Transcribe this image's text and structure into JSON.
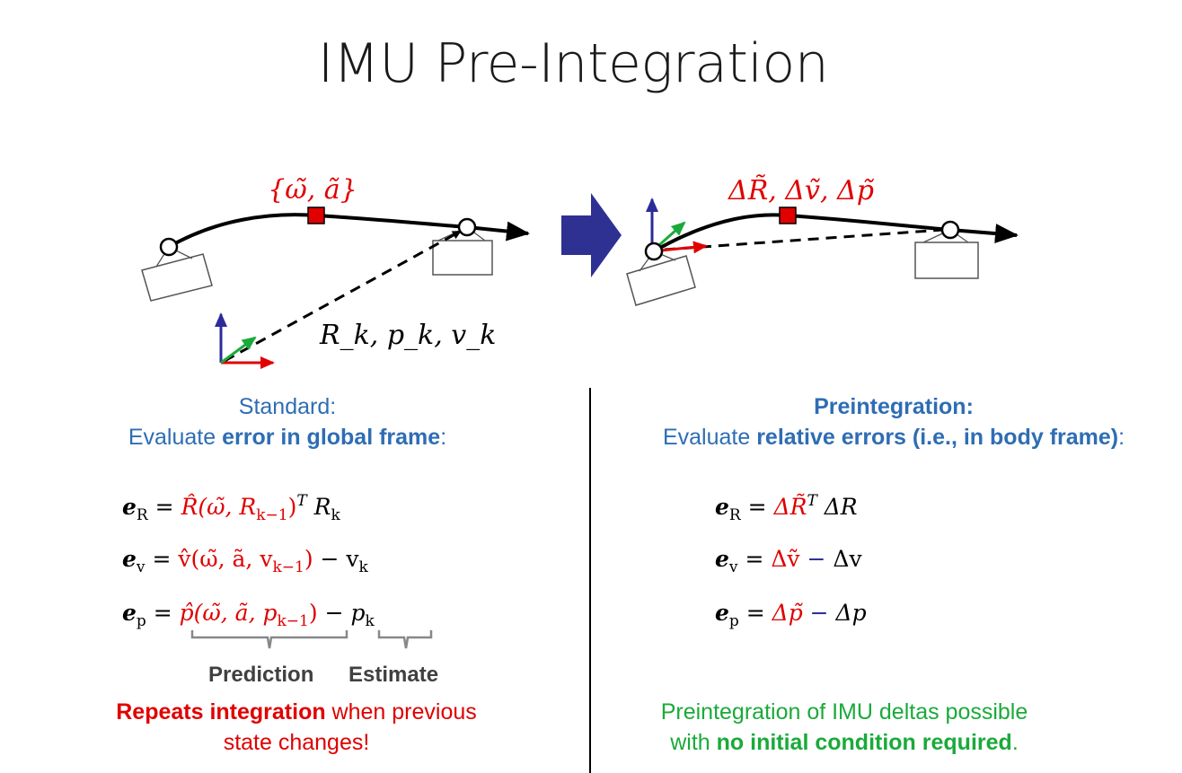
{
  "title": "IMU Pre-Integration",
  "diagram": {
    "left_measurement_label": "{ω̃, ã}",
    "left_state_label": "R_k, p_k, v_k",
    "right_delta_label": "ΔR̃, Δṽ, Δp̃",
    "colors": {
      "red": "#E00000",
      "blue": "#2B2B9A",
      "green": "#1AAA3A",
      "arrow": "#2B2B9A"
    }
  },
  "left": {
    "heading_line1": "Standard:",
    "heading_line2_prefix": "Evaluate ",
    "heading_line2_bold": "error in global frame",
    "heading_line2_suffix": ":",
    "equations": [
      {
        "lhs": "e",
        "lhs_sub": "R",
        "rhs_red": "R̂(ω̃, R",
        "rhs_red_sub": "k−1",
        "rhs_red_tail": ")",
        "rhs_sup": "T",
        "rhs_black": " R",
        "rhs_black_sub": "k"
      },
      {
        "lhs": "e",
        "lhs_sub": "v",
        "rhs_red": "v̂(ω̃, ã, v",
        "rhs_red_sub": "k−1",
        "rhs_red_tail": ")",
        "rhs_black": " − v",
        "rhs_black_sub": "k"
      },
      {
        "lhs": "e",
        "lhs_sub": "p",
        "rhs_red": "p̂(ω̃, ã, p",
        "rhs_red_sub": "k−1",
        "rhs_red_tail": ")",
        "rhs_black": " − p",
        "rhs_black_sub": "k"
      }
    ],
    "brace_prediction": "Prediction",
    "brace_estimate": "Estimate",
    "note_bold": "Repeats integration",
    "note_rest_line1": " when previous",
    "note_line2": "state changes!"
  },
  "right": {
    "heading_line1": "Preintegration:",
    "heading_line2_prefix": "Evaluate ",
    "heading_line2_bold": "relative errors (i.e., in body frame)",
    "heading_line2_suffix": ":",
    "equations": [
      {
        "lhs": "e",
        "lhs_sub": "R",
        "rhs_red": "ΔR̃",
        "rhs_sup": "T",
        "rhs_black": " ΔR"
      },
      {
        "lhs": "e",
        "lhs_sub": "v",
        "rhs_red": "Δṽ",
        "rhs_minus": " − ",
        "rhs_black": "Δv"
      },
      {
        "lhs": "e",
        "lhs_sub": "p",
        "rhs_red": "Δp̃",
        "rhs_minus": " − ",
        "rhs_black": "Δp"
      }
    ],
    "note_line1": "Preintegration of IMU deltas possible",
    "note_line2_prefix": "with ",
    "note_line2_bold": "no initial condition required",
    "note_line2_suffix": "."
  }
}
